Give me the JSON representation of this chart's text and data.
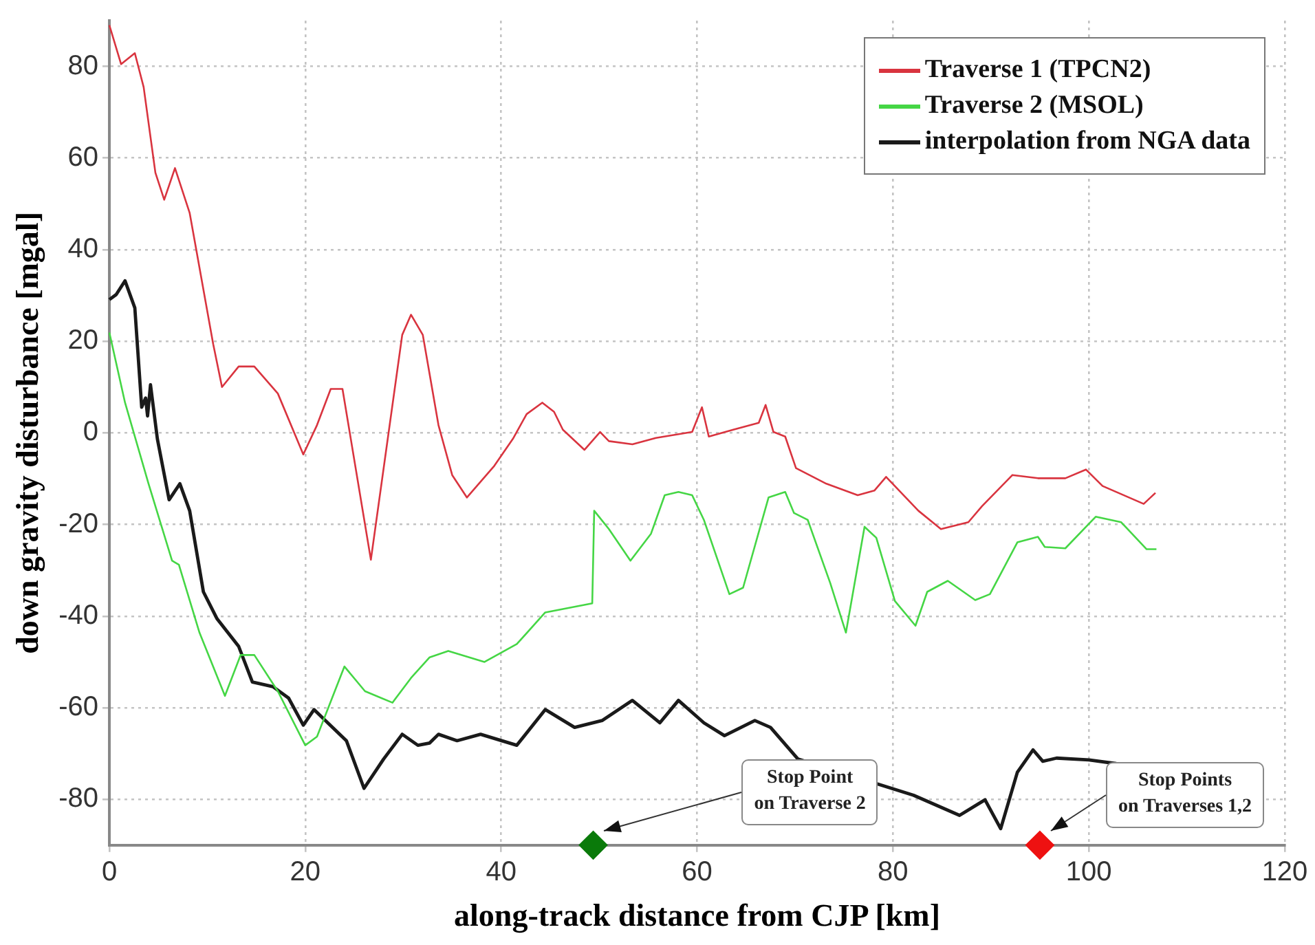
{
  "chart_data": {
    "type": "line",
    "xlabel": "along-track distance from CJP [km]",
    "ylabel": "down gravity disturbance [mgal]",
    "xlim": [
      0,
      120
    ],
    "ylim": [
      -90,
      90
    ],
    "xticks": [
      0,
      20,
      40,
      60,
      80,
      100,
      120
    ],
    "yticks": [
      -80,
      -60,
      -40,
      -20,
      0,
      20,
      40,
      60,
      80
    ],
    "grid": true,
    "legend": "top right",
    "marker": "none",
    "line_style": "solid",
    "series": [
      {
        "name": "Traverse 1 (TPCN2)",
        "color": "#d9343f",
        "x": [
          0,
          1.2,
          2.6,
          3.5,
          4.7,
          5.6,
          6.7,
          8.2,
          10.6,
          11.5,
          13.2,
          14.8,
          17.2,
          19.8,
          21.2,
          22.6,
          23.8,
          26.7,
          29.9,
          30.8,
          32,
          33.6,
          35,
          36.5,
          39.3,
          41.2,
          42.6,
          44.2,
          45.4,
          46.3,
          48.5,
          50.1,
          51,
          53.4,
          55.8,
          59.5,
          60.5,
          61.2,
          63.7,
          66.3,
          67,
          67.8,
          69,
          70.1,
          73.2,
          76.4,
          78.1,
          79.3,
          82.6,
          84.9,
          87.7,
          89.1,
          92.2,
          94.8,
          97.6,
          99.7,
          101.4,
          105.6,
          106.8
        ],
        "values": [
          89,
          80.5,
          82.9,
          75.5,
          56.8,
          50.9,
          57.8,
          48,
          19.4,
          10,
          14.5,
          14.5,
          8.6,
          -4.7,
          1.7,
          9.6,
          9.6,
          -27.7,
          21.4,
          25.8,
          21.4,
          1.7,
          -9.2,
          -14.1,
          -7.2,
          -1.3,
          4.1,
          6.6,
          4.6,
          0.7,
          -3.7,
          0.2,
          -1.8,
          -2.5,
          -1.1,
          0.2,
          5.6,
          -0.8,
          0.7,
          2.2,
          6.1,
          0.2,
          -0.8,
          -7.7,
          -11.1,
          -13.6,
          -12.6,
          -9.6,
          -17,
          -21,
          -19.5,
          -16,
          -9.2,
          -9.9,
          -9.9,
          -8,
          -11.6,
          -15.5,
          -13.1
        ]
      },
      {
        "name": "Traverse 2 (MSOL)",
        "color": "#45d645",
        "x": [
          0,
          1.6,
          4,
          6.4,
          7.1,
          9.2,
          11.8,
          13.4,
          14.8,
          17.2,
          20,
          21.2,
          24,
          26.1,
          28.9,
          30.8,
          32.7,
          34.6,
          38.3,
          41.6,
          44.5,
          49.3,
          49.5,
          51,
          53.2,
          55.3,
          56.7,
          58.1,
          59.5,
          60.7,
          63.3,
          64.7,
          67.3,
          69,
          69.9,
          71.3,
          73.6,
          75.2,
          77.1,
          78.3,
          80.2,
          82.3,
          83.5,
          85.6,
          88.4,
          89.9,
          92.7,
          94.8,
          95.5,
          97.6,
          100.7,
          103.3,
          105.9,
          106.9
        ],
        "values": [
          21.9,
          6.6,
          -11.1,
          -27.9,
          -28.8,
          -43.6,
          -57.4,
          -48.5,
          -48.5,
          -56.4,
          -68.2,
          -66.3,
          -51,
          -56.4,
          -58.9,
          -53.5,
          -49,
          -47.6,
          -50,
          -46.1,
          -39.2,
          -37.2,
          -17,
          -21,
          -27.9,
          -22,
          -13.6,
          -12.9,
          -13.6,
          -19,
          -35.2,
          -33.8,
          -14.1,
          -12.9,
          -17.5,
          -19,
          -32.8,
          -43.6,
          -20.5,
          -22.9,
          -36.7,
          -42.1,
          -34.7,
          -32.3,
          -36.5,
          -35.2,
          -23.9,
          -22.7,
          -24.9,
          -25.2,
          -18.3,
          -19.5,
          -25.4,
          -25.4
        ]
      },
      {
        "name": "interpolation from NGA data",
        "color": "#1a1a1a",
        "x": [
          0,
          0.7,
          1.6,
          2.6,
          3.3,
          3.7,
          3.9,
          4.2,
          4.9,
          6.1,
          7.2,
          8.2,
          9.6,
          11,
          13.2,
          14.6,
          16.7,
          18.3,
          19.8,
          20.9,
          22.3,
          24.2,
          26,
          28,
          29.9,
          31.5,
          32.7,
          33.6,
          35.5,
          37.9,
          41.6,
          44.5,
          47.5,
          50.3,
          53.4,
          56.2,
          58.1,
          60.7,
          62.8,
          65.9,
          67.5,
          70.3,
          82.1,
          86.8,
          89.4,
          91,
          92.7,
          94.3,
          95.3,
          96.7,
          100,
          102.8
        ],
        "values": [
          29.1,
          30.2,
          33.2,
          27.3,
          5.6,
          7.6,
          3.7,
          10.5,
          -1.3,
          -14.6,
          -11.1,
          -17,
          -34.7,
          -40.6,
          -46.6,
          -54.4,
          -55.4,
          -57.9,
          -63.8,
          -60.4,
          -63.3,
          -67.2,
          -77.6,
          -71.2,
          -65.8,
          -68.2,
          -67.7,
          -65.8,
          -67.2,
          -65.8,
          -68.2,
          -60.4,
          -64.3,
          -62.8,
          -58.4,
          -63.3,
          -58.4,
          -63.3,
          -66.1,
          -62.8,
          -64.3,
          -71.2,
          -79.1,
          -83.5,
          -80.1,
          -86.4,
          -74.1,
          -69.2,
          -71.7,
          -71,
          -71.4,
          -72.2
        ]
      },
      {
        "type": "scatter",
        "marker": "diamond",
        "color": "#0a7a0a",
        "x": [
          49.4
        ],
        "values": [
          -90
        ]
      },
      {
        "type": "scatter",
        "marker": "diamond",
        "color": "#ee1111",
        "x": [
          95
        ],
        "values": [
          -90
        ]
      }
    ],
    "annotations": [
      "Stop Point\non Traverse 2",
      "Stop Points\non Traverses 1,2"
    ]
  }
}
